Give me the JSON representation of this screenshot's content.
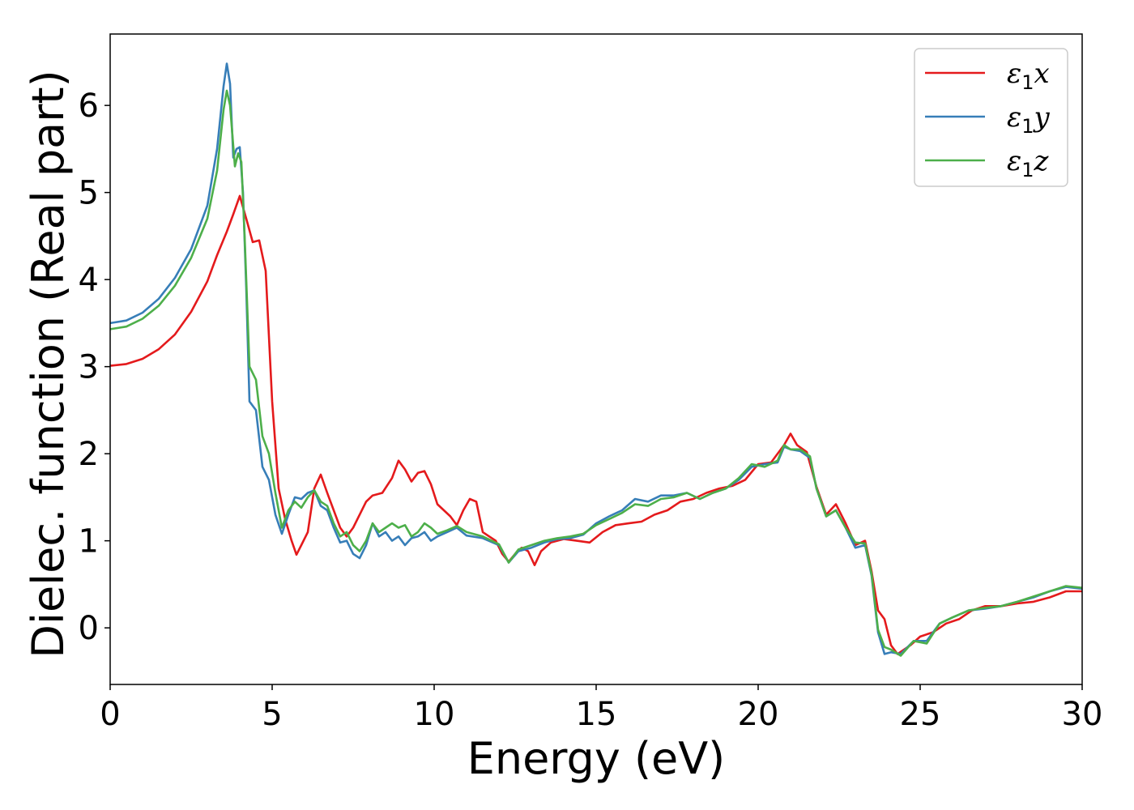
{
  "chart_data": {
    "type": "line",
    "xlabel": "Energy (eV)",
    "ylabel": "Dielec. function (Real part)",
    "xlim": [
      0,
      30
    ],
    "ylim": [
      -0.65,
      6.82
    ],
    "xticks": [
      0,
      5,
      10,
      15,
      20,
      25,
      30
    ],
    "yticks": [
      0,
      1,
      2,
      3,
      4,
      5,
      6
    ],
    "grid": false,
    "legend_position": "top-right",
    "series": [
      {
        "name": "ε1x",
        "legend_base": "ε",
        "legend_sub": "1",
        "legend_tail": "x",
        "color": "#e41a1c",
        "points": [
          [
            0,
            3.01
          ],
          [
            0.5,
            3.03
          ],
          [
            1,
            3.09
          ],
          [
            1.5,
            3.2
          ],
          [
            2,
            3.37
          ],
          [
            2.5,
            3.63
          ],
          [
            3,
            3.98
          ],
          [
            3.3,
            4.28
          ],
          [
            3.6,
            4.55
          ],
          [
            3.8,
            4.75
          ],
          [
            4.0,
            4.96
          ],
          [
            4.2,
            4.7
          ],
          [
            4.4,
            4.43
          ],
          [
            4.6,
            4.45
          ],
          [
            4.8,
            4.1
          ],
          [
            5.0,
            2.6
          ],
          [
            5.2,
            1.6
          ],
          [
            5.4,
            1.25
          ],
          [
            5.6,
            1.0
          ],
          [
            5.75,
            0.84
          ],
          [
            5.9,
            0.95
          ],
          [
            6.1,
            1.1
          ],
          [
            6.3,
            1.6
          ],
          [
            6.5,
            1.76
          ],
          [
            6.7,
            1.55
          ],
          [
            6.9,
            1.35
          ],
          [
            7.1,
            1.15
          ],
          [
            7.3,
            1.05
          ],
          [
            7.5,
            1.15
          ],
          [
            7.7,
            1.3
          ],
          [
            7.9,
            1.45
          ],
          [
            8.1,
            1.52
          ],
          [
            8.4,
            1.55
          ],
          [
            8.7,
            1.72
          ],
          [
            8.9,
            1.92
          ],
          [
            9.1,
            1.82
          ],
          [
            9.3,
            1.68
          ],
          [
            9.5,
            1.78
          ],
          [
            9.7,
            1.8
          ],
          [
            9.9,
            1.65
          ],
          [
            10.1,
            1.42
          ],
          [
            10.3,
            1.35
          ],
          [
            10.5,
            1.28
          ],
          [
            10.7,
            1.18
          ],
          [
            10.9,
            1.35
          ],
          [
            11.1,
            1.48
          ],
          [
            11.3,
            1.45
          ],
          [
            11.5,
            1.1
          ],
          [
            11.7,
            1.05
          ],
          [
            11.9,
            1.0
          ],
          [
            12.1,
            0.85
          ],
          [
            12.3,
            0.76
          ],
          [
            12.5,
            0.85
          ],
          [
            12.7,
            0.92
          ],
          [
            12.9,
            0.88
          ],
          [
            13.1,
            0.72
          ],
          [
            13.3,
            0.88
          ],
          [
            13.6,
            0.98
          ],
          [
            14.0,
            1.02
          ],
          [
            14.4,
            1.0
          ],
          [
            14.8,
            0.98
          ],
          [
            15.2,
            1.1
          ],
          [
            15.6,
            1.18
          ],
          [
            16.0,
            1.2
          ],
          [
            16.4,
            1.22
          ],
          [
            16.8,
            1.3
          ],
          [
            17.2,
            1.35
          ],
          [
            17.6,
            1.45
          ],
          [
            18.0,
            1.48
          ],
          [
            18.4,
            1.55
          ],
          [
            18.8,
            1.6
          ],
          [
            19.2,
            1.63
          ],
          [
            19.6,
            1.7
          ],
          [
            20.0,
            1.88
          ],
          [
            20.4,
            1.9
          ],
          [
            20.8,
            2.1
          ],
          [
            21.0,
            2.23
          ],
          [
            21.2,
            2.1
          ],
          [
            21.5,
            2.02
          ],
          [
            21.8,
            1.62
          ],
          [
            22.1,
            1.3
          ],
          [
            22.4,
            1.42
          ],
          [
            22.7,
            1.2
          ],
          [
            23.0,
            0.95
          ],
          [
            23.3,
            1.0
          ],
          [
            23.5,
            0.65
          ],
          [
            23.7,
            0.2
          ],
          [
            23.9,
            0.1
          ],
          [
            24.1,
            -0.2
          ],
          [
            24.3,
            -0.3
          ],
          [
            24.7,
            -0.2
          ],
          [
            25.0,
            -0.1
          ],
          [
            25.4,
            -0.05
          ],
          [
            25.8,
            0.05
          ],
          [
            26.2,
            0.1
          ],
          [
            26.6,
            0.2
          ],
          [
            27.0,
            0.25
          ],
          [
            27.5,
            0.25
          ],
          [
            28.0,
            0.28
          ],
          [
            28.5,
            0.3
          ],
          [
            29.0,
            0.35
          ],
          [
            29.5,
            0.42
          ],
          [
            30.0,
            0.42
          ]
        ]
      },
      {
        "name": "ε1y",
        "legend_base": "ε",
        "legend_sub": "1",
        "legend_tail": "y",
        "color": "#377eb8",
        "points": [
          [
            0,
            3.5
          ],
          [
            0.5,
            3.53
          ],
          [
            1,
            3.62
          ],
          [
            1.5,
            3.78
          ],
          [
            2,
            4.02
          ],
          [
            2.5,
            4.35
          ],
          [
            3,
            4.85
          ],
          [
            3.3,
            5.5
          ],
          [
            3.5,
            6.22
          ],
          [
            3.6,
            6.48
          ],
          [
            3.7,
            6.25
          ],
          [
            3.8,
            5.4
          ],
          [
            3.9,
            5.5
          ],
          [
            4.0,
            5.52
          ],
          [
            4.1,
            5.0
          ],
          [
            4.2,
            3.9
          ],
          [
            4.3,
            2.6
          ],
          [
            4.5,
            2.5
          ],
          [
            4.7,
            1.85
          ],
          [
            4.9,
            1.7
          ],
          [
            5.1,
            1.3
          ],
          [
            5.3,
            1.08
          ],
          [
            5.5,
            1.3
          ],
          [
            5.7,
            1.5
          ],
          [
            5.9,
            1.48
          ],
          [
            6.1,
            1.55
          ],
          [
            6.3,
            1.58
          ],
          [
            6.5,
            1.4
          ],
          [
            6.7,
            1.35
          ],
          [
            6.9,
            1.15
          ],
          [
            7.1,
            0.98
          ],
          [
            7.3,
            1.0
          ],
          [
            7.5,
            0.85
          ],
          [
            7.7,
            0.8
          ],
          [
            7.9,
            0.95
          ],
          [
            8.1,
            1.2
          ],
          [
            8.3,
            1.05
          ],
          [
            8.5,
            1.1
          ],
          [
            8.7,
            1.0
          ],
          [
            8.9,
            1.05
          ],
          [
            9.1,
            0.95
          ],
          [
            9.3,
            1.03
          ],
          [
            9.5,
            1.05
          ],
          [
            9.7,
            1.1
          ],
          [
            9.9,
            1.0
          ],
          [
            10.1,
            1.05
          ],
          [
            10.4,
            1.1
          ],
          [
            10.7,
            1.15
          ],
          [
            11.0,
            1.06
          ],
          [
            11.5,
            1.03
          ],
          [
            12.0,
            0.95
          ],
          [
            12.3,
            0.75
          ],
          [
            12.6,
            0.88
          ],
          [
            13.0,
            0.92
          ],
          [
            13.4,
            0.98
          ],
          [
            13.8,
            1.02
          ],
          [
            14.2,
            1.03
          ],
          [
            14.6,
            1.07
          ],
          [
            15.0,
            1.2
          ],
          [
            15.4,
            1.28
          ],
          [
            15.8,
            1.35
          ],
          [
            16.2,
            1.48
          ],
          [
            16.6,
            1.45
          ],
          [
            17.0,
            1.52
          ],
          [
            17.4,
            1.52
          ],
          [
            17.8,
            1.55
          ],
          [
            18.2,
            1.48
          ],
          [
            18.6,
            1.55
          ],
          [
            19.0,
            1.6
          ],
          [
            19.4,
            1.7
          ],
          [
            19.8,
            1.85
          ],
          [
            20.2,
            1.88
          ],
          [
            20.6,
            1.9
          ],
          [
            20.8,
            2.08
          ],
          [
            21.0,
            2.05
          ],
          [
            21.3,
            2.03
          ],
          [
            21.6,
            1.95
          ],
          [
            21.8,
            1.6
          ],
          [
            22.1,
            1.28
          ],
          [
            22.4,
            1.35
          ],
          [
            22.7,
            1.15
          ],
          [
            23.0,
            0.92
          ],
          [
            23.3,
            0.95
          ],
          [
            23.5,
            0.6
          ],
          [
            23.7,
            -0.05
          ],
          [
            23.9,
            -0.3
          ],
          [
            24.1,
            -0.28
          ],
          [
            24.4,
            -0.3
          ],
          [
            24.8,
            -0.15
          ],
          [
            25.2,
            -0.15
          ],
          [
            25.6,
            0.05
          ],
          [
            26.0,
            0.12
          ],
          [
            26.5,
            0.2
          ],
          [
            27.0,
            0.22
          ],
          [
            27.5,
            0.25
          ],
          [
            28.0,
            0.3
          ],
          [
            28.5,
            0.35
          ],
          [
            29.0,
            0.42
          ],
          [
            29.5,
            0.47
          ],
          [
            30.0,
            0.45
          ]
        ]
      },
      {
        "name": "ε1z",
        "legend_base": "ε",
        "legend_sub": "1",
        "legend_tail": "z",
        "color": "#4daf4a",
        "points": [
          [
            0,
            3.43
          ],
          [
            0.5,
            3.46
          ],
          [
            1,
            3.55
          ],
          [
            1.5,
            3.7
          ],
          [
            2,
            3.93
          ],
          [
            2.5,
            4.25
          ],
          [
            3,
            4.7
          ],
          [
            3.3,
            5.25
          ],
          [
            3.5,
            5.95
          ],
          [
            3.6,
            6.17
          ],
          [
            3.7,
            6.0
          ],
          [
            3.85,
            5.3
          ],
          [
            3.95,
            5.45
          ],
          [
            4.05,
            5.35
          ],
          [
            4.15,
            4.5
          ],
          [
            4.3,
            3.0
          ],
          [
            4.5,
            2.85
          ],
          [
            4.7,
            2.2
          ],
          [
            4.9,
            2.0
          ],
          [
            5.1,
            1.55
          ],
          [
            5.3,
            1.15
          ],
          [
            5.5,
            1.35
          ],
          [
            5.7,
            1.45
          ],
          [
            5.9,
            1.38
          ],
          [
            6.1,
            1.5
          ],
          [
            6.3,
            1.58
          ],
          [
            6.5,
            1.45
          ],
          [
            6.7,
            1.4
          ],
          [
            6.9,
            1.2
          ],
          [
            7.1,
            1.05
          ],
          [
            7.3,
            1.1
          ],
          [
            7.5,
            0.95
          ],
          [
            7.7,
            0.88
          ],
          [
            7.9,
            1.0
          ],
          [
            8.1,
            1.2
          ],
          [
            8.3,
            1.1
          ],
          [
            8.5,
            1.15
          ],
          [
            8.7,
            1.2
          ],
          [
            8.9,
            1.15
          ],
          [
            9.1,
            1.18
          ],
          [
            9.3,
            1.05
          ],
          [
            9.5,
            1.1
          ],
          [
            9.7,
            1.2
          ],
          [
            9.9,
            1.15
          ],
          [
            10.1,
            1.08
          ],
          [
            10.4,
            1.12
          ],
          [
            10.7,
            1.17
          ],
          [
            11.0,
            1.1
          ],
          [
            11.5,
            1.05
          ],
          [
            12.0,
            0.96
          ],
          [
            12.3,
            0.75
          ],
          [
            12.6,
            0.9
          ],
          [
            13.0,
            0.95
          ],
          [
            13.4,
            1.0
          ],
          [
            13.8,
            1.03
          ],
          [
            14.2,
            1.05
          ],
          [
            14.6,
            1.08
          ],
          [
            15.0,
            1.18
          ],
          [
            15.4,
            1.25
          ],
          [
            15.8,
            1.32
          ],
          [
            16.2,
            1.42
          ],
          [
            16.6,
            1.4
          ],
          [
            17.0,
            1.48
          ],
          [
            17.4,
            1.5
          ],
          [
            17.8,
            1.55
          ],
          [
            18.2,
            1.48
          ],
          [
            18.6,
            1.55
          ],
          [
            19.0,
            1.6
          ],
          [
            19.4,
            1.72
          ],
          [
            19.8,
            1.88
          ],
          [
            20.2,
            1.85
          ],
          [
            20.6,
            1.92
          ],
          [
            20.8,
            2.1
          ],
          [
            21.0,
            2.05
          ],
          [
            21.3,
            2.05
          ],
          [
            21.6,
            1.97
          ],
          [
            21.8,
            1.6
          ],
          [
            22.1,
            1.28
          ],
          [
            22.4,
            1.35
          ],
          [
            22.7,
            1.15
          ],
          [
            23.0,
            0.98
          ],
          [
            23.3,
            0.97
          ],
          [
            23.5,
            0.62
          ],
          [
            23.7,
            -0.02
          ],
          [
            23.9,
            -0.22
          ],
          [
            24.1,
            -0.25
          ],
          [
            24.4,
            -0.32
          ],
          [
            24.8,
            -0.15
          ],
          [
            25.2,
            -0.18
          ],
          [
            25.6,
            0.05
          ],
          [
            26.0,
            0.12
          ],
          [
            26.5,
            0.2
          ],
          [
            27.0,
            0.23
          ],
          [
            27.5,
            0.25
          ],
          [
            28.0,
            0.3
          ],
          [
            28.5,
            0.36
          ],
          [
            29.0,
            0.42
          ],
          [
            29.5,
            0.48
          ],
          [
            30.0,
            0.46
          ]
        ]
      }
    ]
  }
}
